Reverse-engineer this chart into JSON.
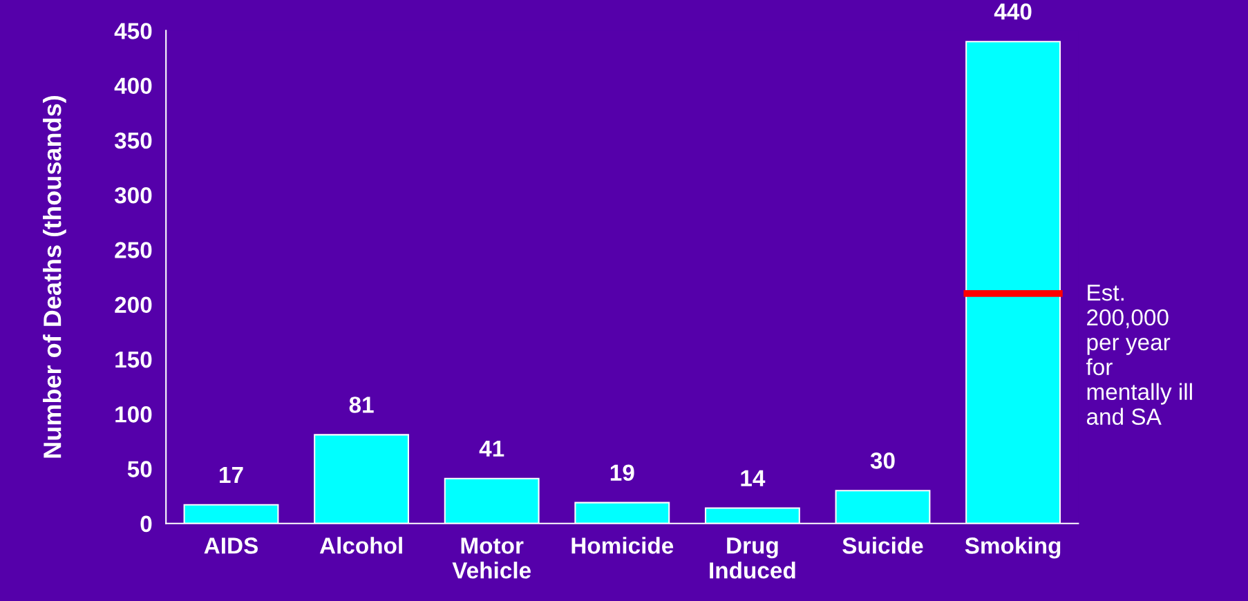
{
  "chart_data": {
    "type": "bar",
    "ylabel": "Number of Deaths (thousands)",
    "categories": [
      "AIDS",
      "Alcohol",
      "Motor\nVehicle",
      "Homicide",
      "Drug\nInduced",
      "Suicide",
      "Smoking"
    ],
    "values": [
      17,
      81,
      41,
      19,
      14,
      30,
      440
    ],
    "color": "#00ffff",
    "ylim": [
      0,
      450
    ],
    "yticks": [
      0,
      50,
      100,
      150,
      200,
      250,
      300,
      350,
      400,
      450
    ],
    "data_labels": true,
    "grid": false,
    "legend": false,
    "ref_lines": [
      {
        "axis": "y",
        "value": 210,
        "label": "Est.\n200,000\nper year\nfor\nmentally ill\nand SA",
        "color": "#ff0000"
      }
    ]
  }
}
